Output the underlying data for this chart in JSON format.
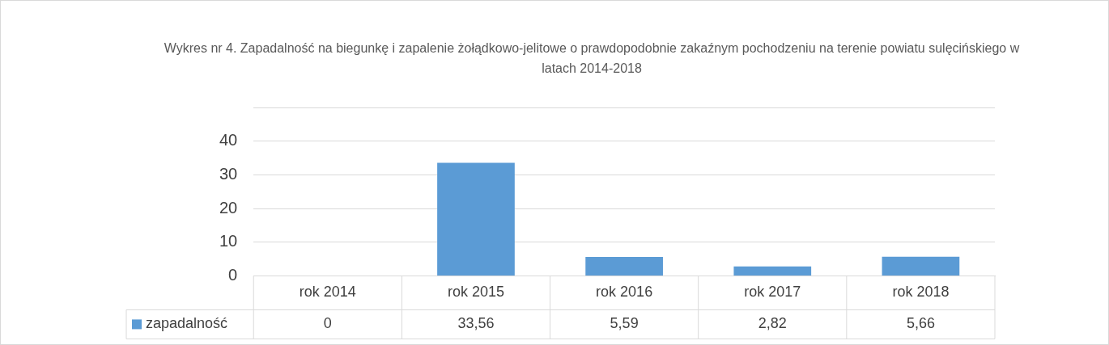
{
  "chart_data": {
    "type": "bar",
    "title": "Wykres nr 4. Zapadalność na biegunkę i zapalenie żołądkowo-jelitowe o prawdopodobnie zakaźnym pochodzeniu na terenie powiatu sulęcińskiego w latach 2014-2018",
    "categories": [
      "rok 2014",
      "rok 2015",
      "rok 2016",
      "rok 2017",
      "rok 2018"
    ],
    "series": [
      {
        "name": "zapadalność",
        "color": "#5b9bd5",
        "values": [
          0,
          33.56,
          5.59,
          2.82,
          5.66
        ],
        "value_labels": [
          "0",
          "33,56",
          "5,59",
          "2,82",
          "5,66"
        ]
      }
    ],
    "ylim": [
      0,
      50
    ],
    "yticks": [
      0,
      10,
      20,
      30,
      40,
      {
        "value": 50,
        "label": null
      }
    ],
    "grid": "y",
    "legend": "bottom"
  }
}
